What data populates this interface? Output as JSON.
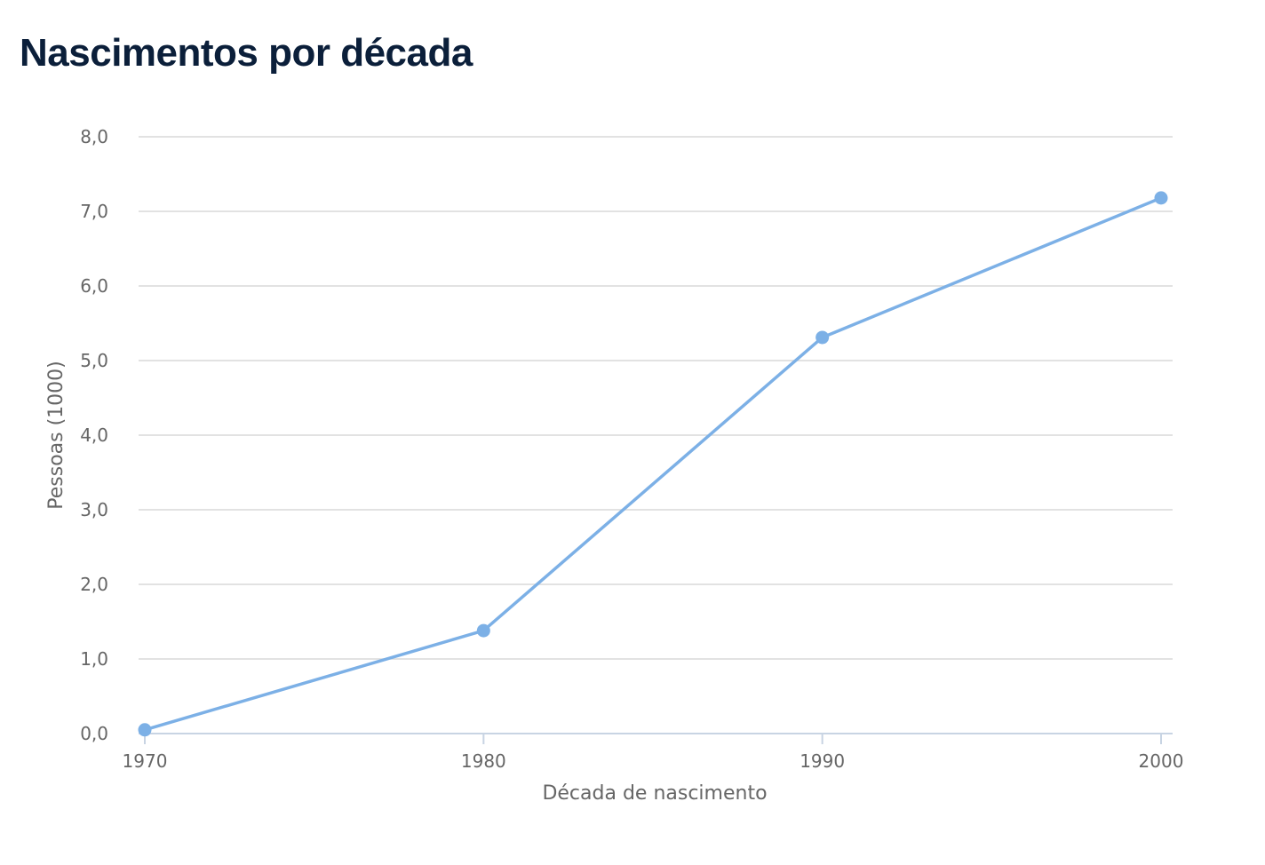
{
  "chart_data": {
    "type": "line",
    "title": "Nascimentos por década",
    "xlabel": "Década de nascimento",
    "ylabel": "Pessoas (1000)",
    "categories": [
      "1970",
      "1980",
      "1990",
      "2000"
    ],
    "series": [
      {
        "values": [
          0.05,
          1.38,
          5.31,
          7.18
        ]
      }
    ],
    "ylim": [
      0,
      8
    ],
    "yticks": [
      "0,0",
      "1,0",
      "2,0",
      "3,0",
      "4,0",
      "5,0",
      "6,0",
      "7,0",
      "8,0"
    ],
    "grid": true,
    "legend": "none",
    "colors": {
      "series": "#7cb0e6",
      "grid": "#d9d9d9",
      "axis": "#c8d4e3",
      "text": "#666666",
      "title": "#0b1f3a"
    }
  }
}
